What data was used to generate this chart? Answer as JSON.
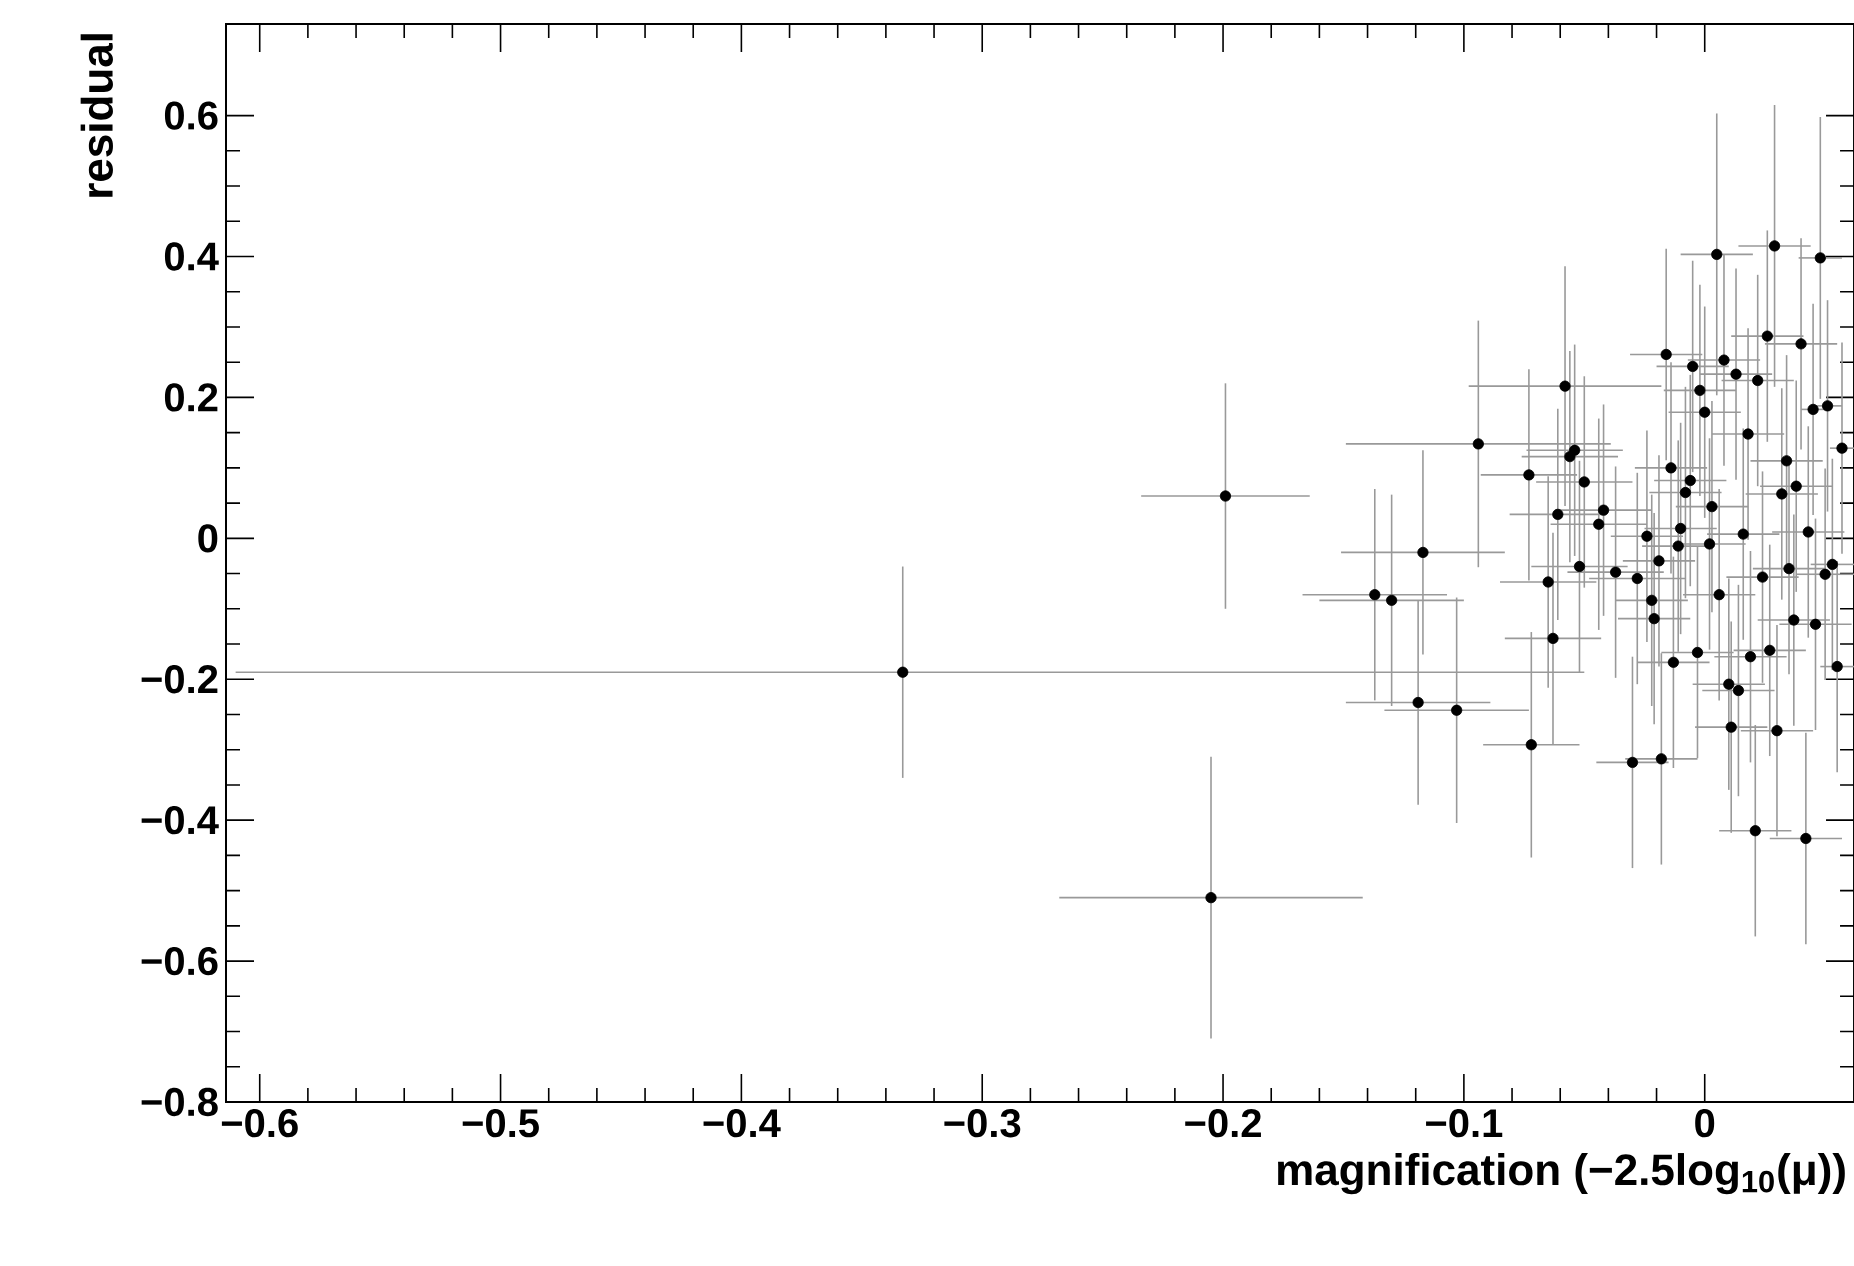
{
  "chart_data": {
    "type": "scatter",
    "xlabel": "magnification (−2.5log$_{10}$(μ))",
    "ylabel": "residual",
    "xlim": [
      -0.614,
      0.062
    ],
    "ylim": [
      -0.8,
      0.73
    ],
    "xticks": [
      {
        "value": -0.6,
        "label": "−0.6"
      },
      {
        "value": -0.5,
        "label": "−0.5"
      },
      {
        "value": -0.4,
        "label": "−0.4"
      },
      {
        "value": -0.3,
        "label": "−0.3"
      },
      {
        "value": -0.2,
        "label": "−0.2"
      },
      {
        "value": -0.1,
        "label": "−0.1"
      },
      {
        "value": 0,
        "label": "0"
      }
    ],
    "yticks": [
      {
        "value": -0.8,
        "label": "−0.8"
      },
      {
        "value": -0.6,
        "label": "−0.6"
      },
      {
        "value": -0.4,
        "label": "−0.4"
      },
      {
        "value": -0.2,
        "label": "−0.2"
      },
      {
        "value": 0,
        "label": "0"
      },
      {
        "value": 0.2,
        "label": "0.2"
      },
      {
        "value": 0.4,
        "label": "0.4"
      },
      {
        "value": 0.6,
        "label": "0.6"
      }
    ],
    "marker": "circle",
    "color": "#000000",
    "x": [
      -0.333,
      -0.199,
      -0.205,
      -0.094,
      -0.117,
      -0.137,
      -0.13,
      -0.119,
      -0.103,
      -0.058,
      -0.073,
      -0.05,
      -0.056,
      -0.054,
      -0.061,
      -0.044,
      -0.042,
      -0.052,
      -0.065,
      -0.063,
      -0.072,
      -0.037,
      -0.028,
      -0.024,
      -0.022,
      -0.03,
      -0.018,
      -0.016,
      -0.005,
      0.005,
      0.029,
      0.048,
      0.04,
      0.026,
      0.051,
      0.045,
      0.057,
      -0.002,
      0.0,
      0.018,
      -0.014,
      -0.006,
      -0.008,
      -0.01,
      -0.011,
      0.034,
      0.038,
      0.043,
      0.053,
      0.05,
      0.035,
      0.046,
      0.055,
      -0.003,
      -0.013,
      -0.021,
      -0.019,
      0.019,
      0.01,
      0.014,
      0.011,
      0.03,
      0.021,
      0.042,
      0.027,
      0.002,
      0.006,
      0.016,
      0.024,
      0.032,
      0.008,
      0.013,
      0.022,
      0.003,
      0.037
    ],
    "values": [
      -0.19,
      0.06,
      -0.51,
      0.134,
      -0.02,
      -0.08,
      -0.088,
      -0.233,
      -0.244,
      0.216,
      0.09,
      0.08,
      0.116,
      0.125,
      0.034,
      0.02,
      0.04,
      -0.04,
      -0.062,
      -0.142,
      -0.293,
      -0.048,
      -0.057,
      0.003,
      -0.088,
      -0.318,
      -0.313,
      0.261,
      0.244,
      0.403,
      0.415,
      0.398,
      0.276,
      0.287,
      0.188,
      0.183,
      0.128,
      0.21,
      0.179,
      0.148,
      0.1,
      0.082,
      0.065,
      0.014,
      -0.011,
      0.11,
      0.074,
      0.009,
      -0.037,
      -0.051,
      -0.043,
      -0.122,
      -0.182,
      -0.162,
      -0.176,
      -0.114,
      -0.032,
      -0.168,
      -0.207,
      -0.216,
      -0.268,
      -0.273,
      -0.415,
      -0.426,
      -0.159,
      -0.008,
      -0.08,
      0.006,
      -0.055,
      0.063,
      0.253,
      0.233,
      0.224,
      0.045,
      -0.116
    ],
    "errors": [
      0.15,
      0.16,
      0.2,
      0.175,
      0.145,
      0.15,
      0.15,
      0.145,
      0.16,
      0.17,
      0.15,
      0.15,
      0.15,
      0.15,
      0.15,
      0.15,
      0.15,
      0.15,
      0.15,
      0.15,
      0.16,
      0.15,
      0.15,
      0.15,
      0.15,
      0.15,
      0.15,
      0.15,
      0.15,
      0.2,
      0.2,
      0.2,
      0.15,
      0.15,
      0.15,
      0.15,
      0.15,
      0.15,
      0.15,
      0.15,
      0.15,
      0.15,
      0.15,
      0.15,
      0.15,
      0.15,
      0.15,
      0.15,
      0.15,
      0.15,
      0.15,
      0.15,
      0.15,
      0.15,
      0.15,
      0.15,
      0.15,
      0.15,
      0.15,
      0.15,
      0.15,
      0.15,
      0.15,
      0.15,
      0.15,
      0.15,
      0.15,
      0.15,
      0.15,
      0.15,
      0.15,
      0.15,
      0.15,
      0.15,
      0.15
    ],
    "xerrors": [
      [
        -0.61,
        -0.05
      ],
      0.035,
      0.063,
      0.055,
      0.034,
      0.03,
      0.03,
      0.03,
      0.03,
      0.04,
      0.02,
      0.02,
      0.02,
      0.02,
      0.02,
      0.02,
      0.02,
      0.02,
      0.02,
      0.02,
      0.02,
      0.02,
      0.02,
      0.015,
      0.015,
      0.015,
      0.015,
      0.015,
      0.015,
      0.015,
      0.015,
      0.009,
      0.015,
      0.015,
      0.006,
      0.005,
      0.005,
      0.015,
      0.015,
      0.015,
      0.015,
      0.015,
      0.015,
      0.015,
      0.015,
      0.015,
      0.015,
      0.015,
      0.009,
      0.012,
      0.015,
      0.015,
      0.007,
      0.015,
      0.015,
      0.015,
      0.015,
      0.015,
      0.015,
      0.015,
      0.015,
      0.015,
      0.015,
      0.015,
      0.015,
      0.015,
      0.015,
      0.015,
      0.015,
      0.015,
      0.015,
      0.015,
      0.015,
      0.015,
      0.015
    ]
  }
}
